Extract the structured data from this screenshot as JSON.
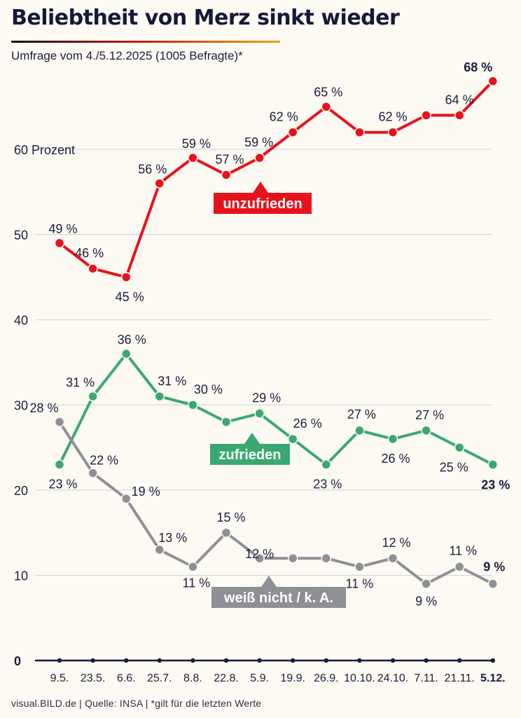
{
  "header": {
    "title": "Beliebtheit von Merz sinkt wieder",
    "subtitle": "Umfrage vom 4./5.12.2025 (1005 Befragte)*"
  },
  "footer": {
    "text": "visual.BILD.de | Quelle: INSA | *gilt für die letzten Werte"
  },
  "chart_data": {
    "type": "line",
    "title": "Beliebtheit von Merz sinkt wieder",
    "ylim": [
      0,
      68
    ],
    "yticks": [
      {
        "value": 0,
        "label": "0"
      },
      {
        "value": 10,
        "label": "10"
      },
      {
        "value": 20,
        "label": "20"
      },
      {
        "value": 30,
        "label": "30"
      },
      {
        "value": 40,
        "label": "40"
      },
      {
        "value": 50,
        "label": "50"
      },
      {
        "value": 60,
        "label": "60 Prozent"
      }
    ],
    "x": [
      "9.5.",
      "23.5.",
      "6.6.",
      "25.7.",
      "8.8.",
      "22.8.",
      "5.9.",
      "19.9.",
      "26.9.",
      "10.10.",
      "24.10.",
      "7.11.",
      "21.11.",
      "5.12."
    ],
    "series": [
      {
        "name": "unzufrieden",
        "color": "#e8121c",
        "values": [
          49,
          46,
          45,
          56,
          59,
          57,
          59,
          62,
          65,
          62,
          62,
          64,
          64,
          68
        ],
        "labels": [
          "49 %",
          "46 %",
          "45 %",
          "56 %",
          "59 %",
          "57 %",
          "59 %",
          "62 %",
          "65 %",
          "",
          "62 %",
          "",
          "64 %",
          "68 %"
        ]
      },
      {
        "name": "zufrieden",
        "color": "#3aa872",
        "values": [
          23,
          31,
          36,
          31,
          30,
          28,
          29,
          26,
          23,
          27,
          26,
          27,
          25,
          23
        ],
        "labels": [
          "23 %",
          "31 %",
          "36 %",
          "31 %",
          "30 %",
          "",
          "29 %",
          "26 %",
          "23 %",
          "27 %",
          "26 %",
          "27 %",
          "25 %",
          "23 %"
        ]
      },
      {
        "name": "weiß nicht / k. A.",
        "color": "#8e9096",
        "values": [
          28,
          22,
          19,
          13,
          11,
          15,
          12,
          12,
          12,
          11,
          12,
          9,
          11,
          9
        ],
        "labels": [
          "28 %",
          "22 %",
          "19 %",
          "13 %",
          "11 %",
          "15 %",
          "12 %",
          "",
          "",
          "11 %",
          "12 %",
          "9 %",
          "11 %",
          "9 %"
        ]
      }
    ]
  }
}
